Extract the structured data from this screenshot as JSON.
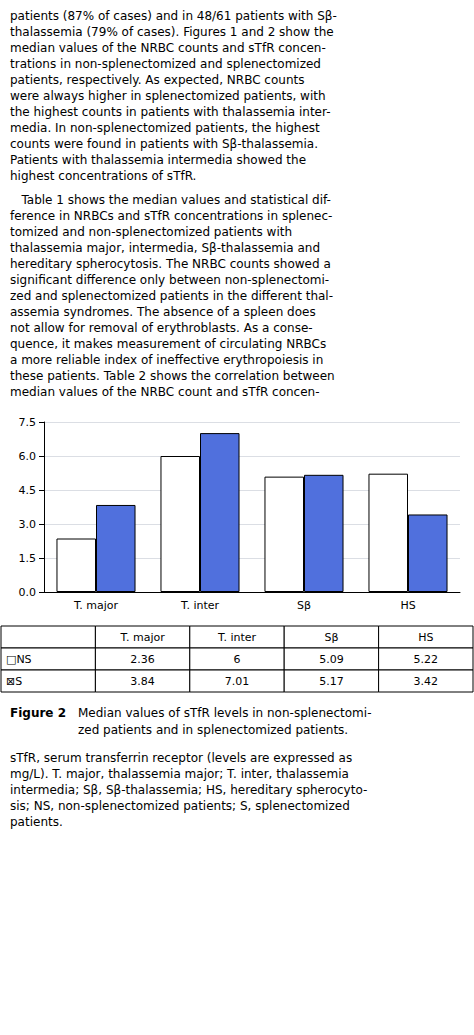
{
  "chart_data": {
    "type": "bar",
    "title": "Figure 2",
    "subtitle": "Median values of sTfR levels in non-splenectomi-\nzed patients and in splenectomized patients.",
    "categories": [
      "T. major",
      "T. inter",
      "Sβ",
      "HS"
    ],
    "series": [
      {
        "name": "□NS",
        "color": "#ffffff",
        "values": [
          2.36,
          6.0,
          5.09,
          5.22
        ]
      },
      {
        "name": "⊠S",
        "values": [
          3.84,
          7.01,
          5.17,
          3.42
        ]
      }
    ],
    "ylim": [
      0,
      7.5
    ],
    "yticks": [
      {
        "value": 0,
        "label": "0.0"
      },
      1.5,
      {
        "value": 3,
        "label": "3.0"
      },
      4.5,
      {
        "value": 6,
        "label": "6.0"
      },
      7.5
    ],
    "grid": true,
    "annotations": [
      "patients (87% of cases) and in 48/61 patients with Sβ-\nthalassemia (79% of cases). Figures 1 and 2 show the\nmedian values of the NRBC counts and sTfR concen-\ntrations in non-splenectomized and splenectomized\npatients, respectively. As expected, NRBC counts\nwere always higher in splenectomized patients, with\nthe highest counts in patients with thalassemia inter-\nmedia. In non-splenectomized patients, the highest\ncounts were found in patients with Sβ-thalassemia.\nPatients with thalassemia intermedia showed the\nhighest concentrations of sTfR.",
      "   Table 1 shows the median values and statistical dif-\nference in NRBCs and sTfR concentrations in splenec-\ntomized and non-splenectomized patients with\nthalassemia major, intermedia, Sβ-thalassemia and\nhereditary spherocytosis. The NRBC counts showed a\nsignificant difference only between non-splenectomi-\nzed and splenectomized patients in the different thal-\nassemia syndromes. The absence of a spleen does\nnot allow for removal of erythroblasts. As a conse-\nquence, it makes measurement of circulating NRBCs\na more reliable index of ineffective erythropoiesis in\nthese patients. Table 2 shows the correlation between\nmedian values of the NRBC count and sTfR concen-",
      "sTfR, serum transferrin receptor (levels are expressed as\nmg/L). T. major, thalassemia major; T. inter, thalassemia\nintermedia; Sβ, Sβ-thalassemia; HS, hereditary spherocyto-\nsis; NS, non-splenectomized patients; S, splenectomized\npatients."
    ]
  }
}
